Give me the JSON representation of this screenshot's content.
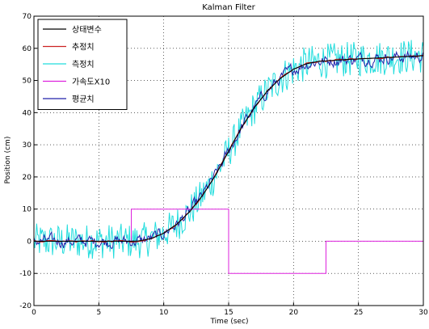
{
  "chart_data": {
    "type": "line",
    "title": "Kalman Filter",
    "xlabel": "Time (sec)",
    "ylabel": "Position (cm)",
    "xlim": [
      0,
      30
    ],
    "ylim": [
      -20,
      70
    ],
    "xticks": [
      0,
      5,
      10,
      15,
      20,
      25,
      30
    ],
    "yticks": [
      -20,
      -10,
      0,
      10,
      20,
      30,
      40,
      50,
      60,
      70
    ],
    "grid": "dotted",
    "legend_location": "top-left",
    "series": [
      {
        "name": "상태변수",
        "color": "#000000",
        "kind": "true_state",
        "x": [
          0,
          7.5,
          8,
          9,
          10,
          11,
          12,
          13,
          14,
          15,
          16,
          17,
          18,
          19,
          20,
          21,
          22,
          22.5,
          24,
          26,
          28,
          30
        ],
        "y": [
          0,
          0,
          0.05,
          0.8,
          2.5,
          5.3,
          9.2,
          14.3,
          20.6,
          28,
          35.4,
          41.7,
          46.8,
          50.7,
          53.5,
          55.2,
          56,
          56.1,
          56.5,
          56.9,
          57.3,
          57.7
        ]
      },
      {
        "name": "추정치",
        "color": "#cc2222",
        "kind": "estimate",
        "x": [
          0,
          7.5,
          8,
          9,
          10,
          11,
          12,
          13,
          14,
          15,
          16,
          17,
          18,
          19,
          20,
          21,
          22,
          22.5,
          24,
          26,
          28,
          30
        ],
        "y": [
          0,
          0,
          0.05,
          0.8,
          2.5,
          5.3,
          9.2,
          14.3,
          20.6,
          28,
          35.4,
          41.7,
          46.8,
          50.7,
          53.5,
          55.2,
          56,
          56.1,
          56.5,
          56.9,
          57.3,
          57.7
        ]
      },
      {
        "name": "측정치",
        "color": "#22dddd",
        "kind": "measurement",
        "noise_amplitude": 5.5,
        "x": [
          0,
          7.5,
          8,
          9,
          10,
          11,
          12,
          13,
          14,
          15,
          16,
          17,
          18,
          19,
          20,
          21,
          22,
          22.5,
          24,
          26,
          28,
          30
        ],
        "y": [
          0,
          0,
          0.05,
          0.8,
          2.5,
          5.3,
          9.2,
          14.3,
          20.6,
          28,
          35.4,
          41.7,
          46.8,
          50.7,
          53.5,
          55.2,
          56,
          56.1,
          56.5,
          56.9,
          57.3,
          57.7
        ]
      },
      {
        "name": "가속도X10",
        "color": "#dd22dd",
        "kind": "acceleration",
        "x": [
          0,
          7.5,
          7.5,
          15,
          15,
          22.5,
          22.5,
          30
        ],
        "y": [
          0,
          0,
          10,
          10,
          -10,
          -10,
          0,
          0
        ]
      },
      {
        "name": "평균치",
        "color": "#2222aa",
        "kind": "average",
        "noise_amplitude": 2.3,
        "x": [
          0,
          7.5,
          8,
          9,
          10,
          11,
          12,
          13,
          14,
          15,
          16,
          17,
          18,
          19,
          20,
          21,
          22,
          22.5,
          24,
          26,
          28,
          30
        ],
        "y": [
          0,
          0,
          0.05,
          0.8,
          2.5,
          5.3,
          9.2,
          14.3,
          20.6,
          28,
          35.4,
          41.7,
          46.8,
          50.7,
          53.5,
          55.2,
          56,
          56.1,
          56.5,
          56.9,
          57.3,
          57.7
        ]
      }
    ]
  }
}
